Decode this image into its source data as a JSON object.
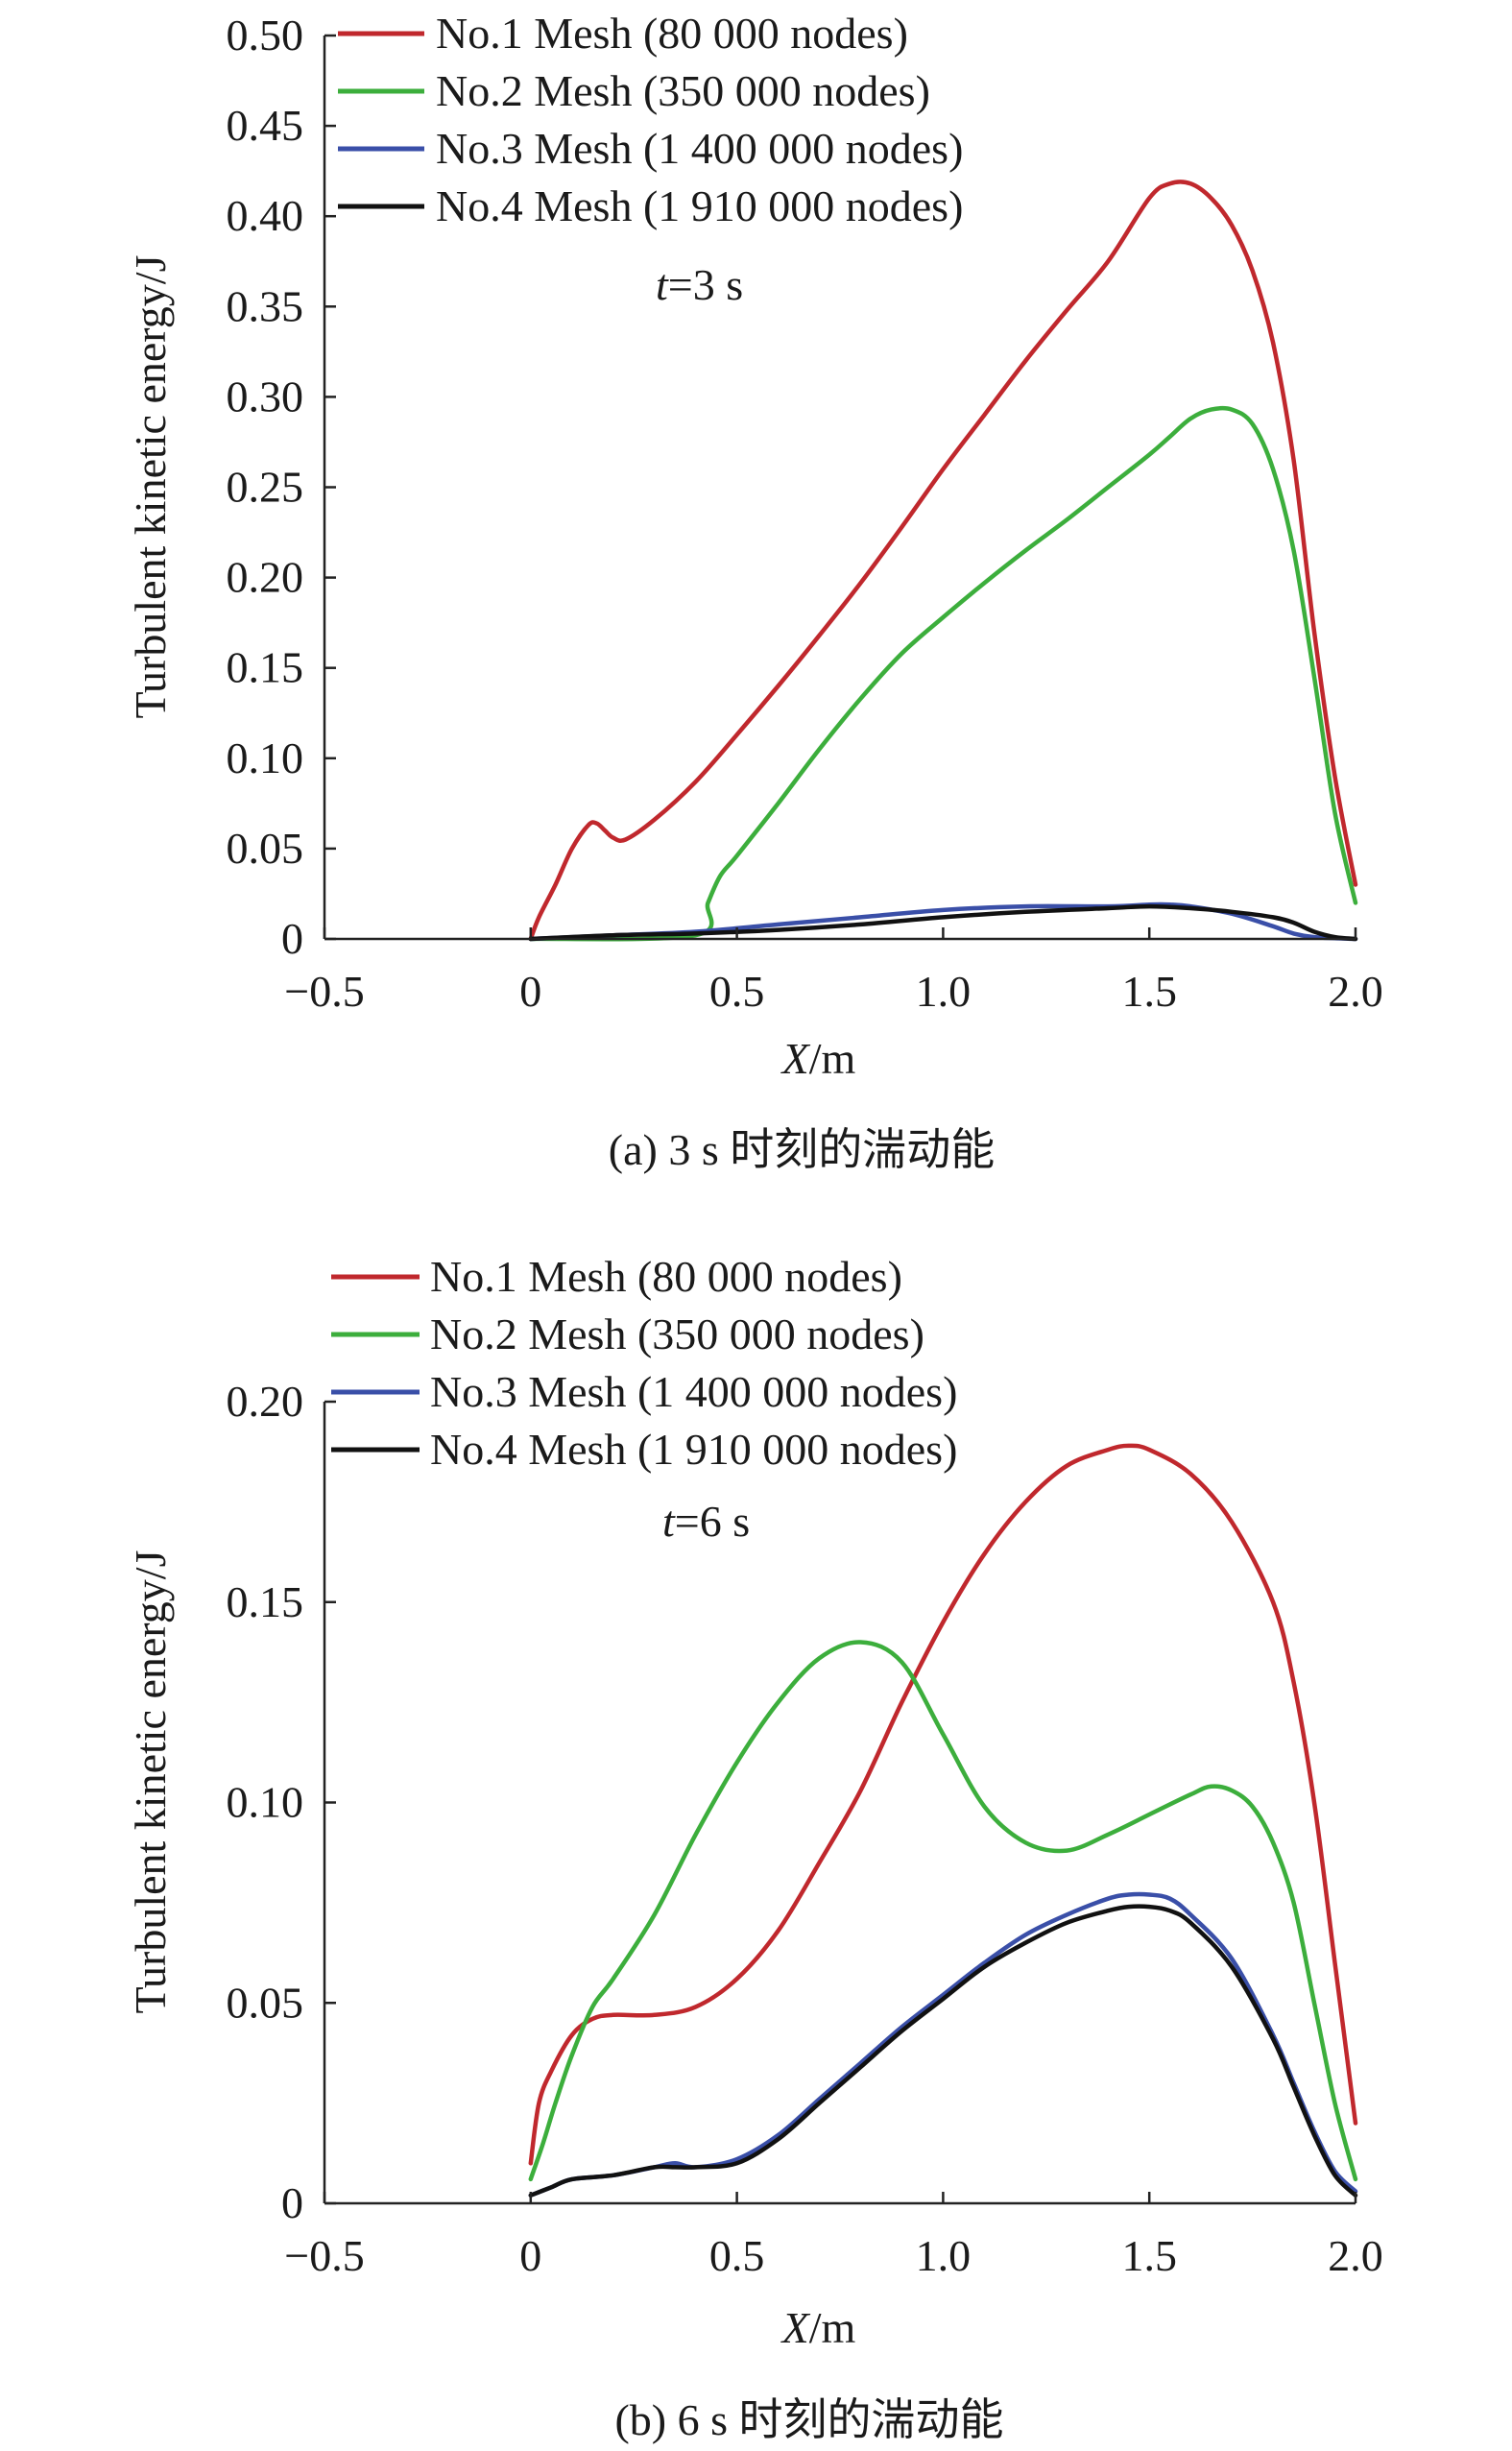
{
  "chart_data": [
    {
      "type": "line",
      "panel": "a",
      "caption": "(a) 3 s 时刻的湍动能",
      "annotation": {
        "italic": "t",
        "rest": "=3 s"
      },
      "xlabel": {
        "italic": "X",
        "rest": "/m"
      },
      "ylabel": "Turbulent kinetic energy/J",
      "xlim": [
        -0.5,
        2.0
      ],
      "ylim": [
        0,
        0.5
      ],
      "xticks": [
        -0.5,
        0,
        0.5,
        1.0,
        1.5,
        2.0
      ],
      "xtick_labels": [
        "−0.5",
        "0",
        "0.5",
        "1.0",
        "1.5",
        "2.0"
      ],
      "yticks": [
        0,
        0.05,
        0.1,
        0.15,
        0.2,
        0.25,
        0.3,
        0.35,
        0.4,
        0.45,
        0.5
      ],
      "ytick_labels": [
        "0",
        "0.05",
        "0.10",
        "0.15",
        "0.20",
        "0.25",
        "0.30",
        "0.35",
        "0.40",
        "0.45",
        "0.50"
      ],
      "legend_position": "top-left",
      "series": [
        {
          "name": "No.1 Mesh (80 000 nodes)",
          "color": "#c0282d",
          "x": [
            0,
            0.02,
            0.06,
            0.1,
            0.14,
            0.16,
            0.18,
            0.2,
            0.23,
            0.3,
            0.4,
            0.5,
            0.6,
            0.7,
            0.8,
            0.9,
            1.0,
            1.1,
            1.2,
            1.3,
            1.4,
            1.5,
            1.55,
            1.6,
            1.65,
            1.7,
            1.75,
            1.8,
            1.85,
            1.9,
            1.95,
            2.0
          ],
          "y": [
            0,
            0.012,
            0.03,
            0.05,
            0.063,
            0.064,
            0.06,
            0.056,
            0.055,
            0.066,
            0.087,
            0.113,
            0.14,
            0.168,
            0.197,
            0.228,
            0.26,
            0.29,
            0.32,
            0.348,
            0.375,
            0.41,
            0.418,
            0.418,
            0.41,
            0.395,
            0.37,
            0.33,
            0.265,
            0.17,
            0.09,
            0.03
          ]
        },
        {
          "name": "No.2 Mesh (350 000 nodes)",
          "color": "#3cae3c",
          "x": [
            0,
            0.4,
            0.43,
            0.46,
            0.5,
            0.6,
            0.7,
            0.8,
            0.9,
            1.0,
            1.1,
            1.2,
            1.3,
            1.4,
            1.5,
            1.55,
            1.6,
            1.65,
            1.7,
            1.75,
            1.8,
            1.85,
            1.9,
            1.95,
            2.0
          ],
          "y": [
            0,
            0.002,
            0.02,
            0.035,
            0.046,
            0.075,
            0.105,
            0.133,
            0.158,
            0.178,
            0.197,
            0.215,
            0.232,
            0.25,
            0.268,
            0.278,
            0.288,
            0.293,
            0.293,
            0.285,
            0.26,
            0.215,
            0.145,
            0.07,
            0.02
          ]
        },
        {
          "name": "No.3 Mesh (1 400 000 nodes)",
          "color": "#3a4fa8",
          "x": [
            0,
            0.2,
            0.4,
            0.6,
            0.8,
            1.0,
            1.2,
            1.4,
            1.5,
            1.55,
            1.6,
            1.7,
            1.8,
            1.85,
            1.9,
            2.0
          ],
          "y": [
            0,
            0.002,
            0.004,
            0.008,
            0.012,
            0.016,
            0.018,
            0.018,
            0.019,
            0.019,
            0.018,
            0.014,
            0.007,
            0.003,
            0.001,
            0.0
          ]
        },
        {
          "name": "No.4 Mesh (1 910 000 nodes)",
          "color": "#111111",
          "x": [
            0,
            0.2,
            0.4,
            0.6,
            0.8,
            1.0,
            1.2,
            1.4,
            1.5,
            1.6,
            1.7,
            1.8,
            1.85,
            1.9,
            1.95,
            2.0
          ],
          "y": [
            0,
            0.002,
            0.003,
            0.005,
            0.008,
            0.012,
            0.015,
            0.017,
            0.018,
            0.017,
            0.015,
            0.012,
            0.009,
            0.004,
            0.001,
            0.0
          ]
        }
      ]
    },
    {
      "type": "line",
      "panel": "b",
      "caption": "(b) 6 s 时刻的湍动能",
      "annotation": {
        "italic": "t",
        "rest": "=6 s"
      },
      "xlabel": {
        "italic": "X",
        "rest": "/m"
      },
      "ylabel": "Turbulent kinetic energy/J",
      "xlim": [
        -0.5,
        2.0
      ],
      "ylim": [
        0,
        0.2
      ],
      "xticks": [
        -0.5,
        0,
        0.5,
        1.0,
        1.5,
        2.0
      ],
      "xtick_labels": [
        "−0.5",
        "0",
        "0.5",
        "1.0",
        "1.5",
        "2.0"
      ],
      "yticks": [
        0,
        0.05,
        0.1,
        0.15,
        0.2
      ],
      "ytick_labels": [
        "0",
        "0.05",
        "0.10",
        "0.15",
        "0.20"
      ],
      "legend_position": "top-left",
      "series": [
        {
          "name": "No.1 Mesh (80 000 nodes)",
          "color": "#c0282d",
          "x": [
            0,
            0.02,
            0.05,
            0.1,
            0.15,
            0.2,
            0.3,
            0.4,
            0.5,
            0.6,
            0.7,
            0.8,
            0.9,
            1.0,
            1.1,
            1.2,
            1.3,
            1.4,
            1.45,
            1.5,
            1.6,
            1.7,
            1.8,
            1.85,
            1.9,
            1.95,
            2.0
          ],
          "y": [
            0.01,
            0.025,
            0.033,
            0.042,
            0.046,
            0.047,
            0.047,
            0.049,
            0.056,
            0.068,
            0.085,
            0.103,
            0.125,
            0.145,
            0.162,
            0.175,
            0.184,
            0.188,
            0.189,
            0.188,
            0.182,
            0.17,
            0.15,
            0.13,
            0.1,
            0.06,
            0.02
          ]
        },
        {
          "name": "No.2 Mesh (350 000 nodes)",
          "color": "#3cae3c",
          "x": [
            0,
            0.03,
            0.06,
            0.1,
            0.15,
            0.2,
            0.3,
            0.4,
            0.5,
            0.6,
            0.7,
            0.8,
            0.9,
            1.0,
            1.1,
            1.2,
            1.3,
            1.4,
            1.5,
            1.6,
            1.65,
            1.7,
            1.75,
            1.8,
            1.85,
            1.9,
            1.95,
            2.0
          ],
          "y": [
            0.006,
            0.015,
            0.025,
            0.037,
            0.049,
            0.056,
            0.072,
            0.092,
            0.11,
            0.125,
            0.136,
            0.14,
            0.135,
            0.117,
            0.099,
            0.09,
            0.088,
            0.092,
            0.097,
            0.102,
            0.104,
            0.103,
            0.099,
            0.09,
            0.075,
            0.05,
            0.025,
            0.006
          ]
        },
        {
          "name": "No.3 Mesh (1 400 000 nodes)",
          "color": "#3a4fa8",
          "x": [
            0,
            0.05,
            0.1,
            0.2,
            0.3,
            0.35,
            0.4,
            0.5,
            0.6,
            0.7,
            0.8,
            0.9,
            1.0,
            1.1,
            1.2,
            1.3,
            1.4,
            1.45,
            1.5,
            1.55,
            1.6,
            1.7,
            1.8,
            1.85,
            1.9,
            1.95,
            2.0
          ],
          "y": [
            0.002,
            0.004,
            0.006,
            0.007,
            0.009,
            0.01,
            0.009,
            0.011,
            0.017,
            0.026,
            0.035,
            0.044,
            0.052,
            0.06,
            0.067,
            0.072,
            0.076,
            0.077,
            0.077,
            0.076,
            0.072,
            0.061,
            0.042,
            0.03,
            0.018,
            0.008,
            0.003
          ]
        },
        {
          "name": "No.4 Mesh (1 910 000 nodes)",
          "color": "#111111",
          "x": [
            0,
            0.05,
            0.1,
            0.2,
            0.3,
            0.35,
            0.4,
            0.5,
            0.6,
            0.7,
            0.8,
            0.9,
            1.0,
            1.1,
            1.2,
            1.3,
            1.4,
            1.45,
            1.5,
            1.55,
            1.6,
            1.7,
            1.8,
            1.85,
            1.9,
            1.95,
            2.0
          ],
          "y": [
            0.002,
            0.004,
            0.006,
            0.007,
            0.009,
            0.009,
            0.009,
            0.01,
            0.016,
            0.025,
            0.034,
            0.043,
            0.051,
            0.059,
            0.065,
            0.07,
            0.073,
            0.074,
            0.074,
            0.073,
            0.07,
            0.059,
            0.041,
            0.029,
            0.017,
            0.007,
            0.002
          ]
        }
      ]
    }
  ]
}
